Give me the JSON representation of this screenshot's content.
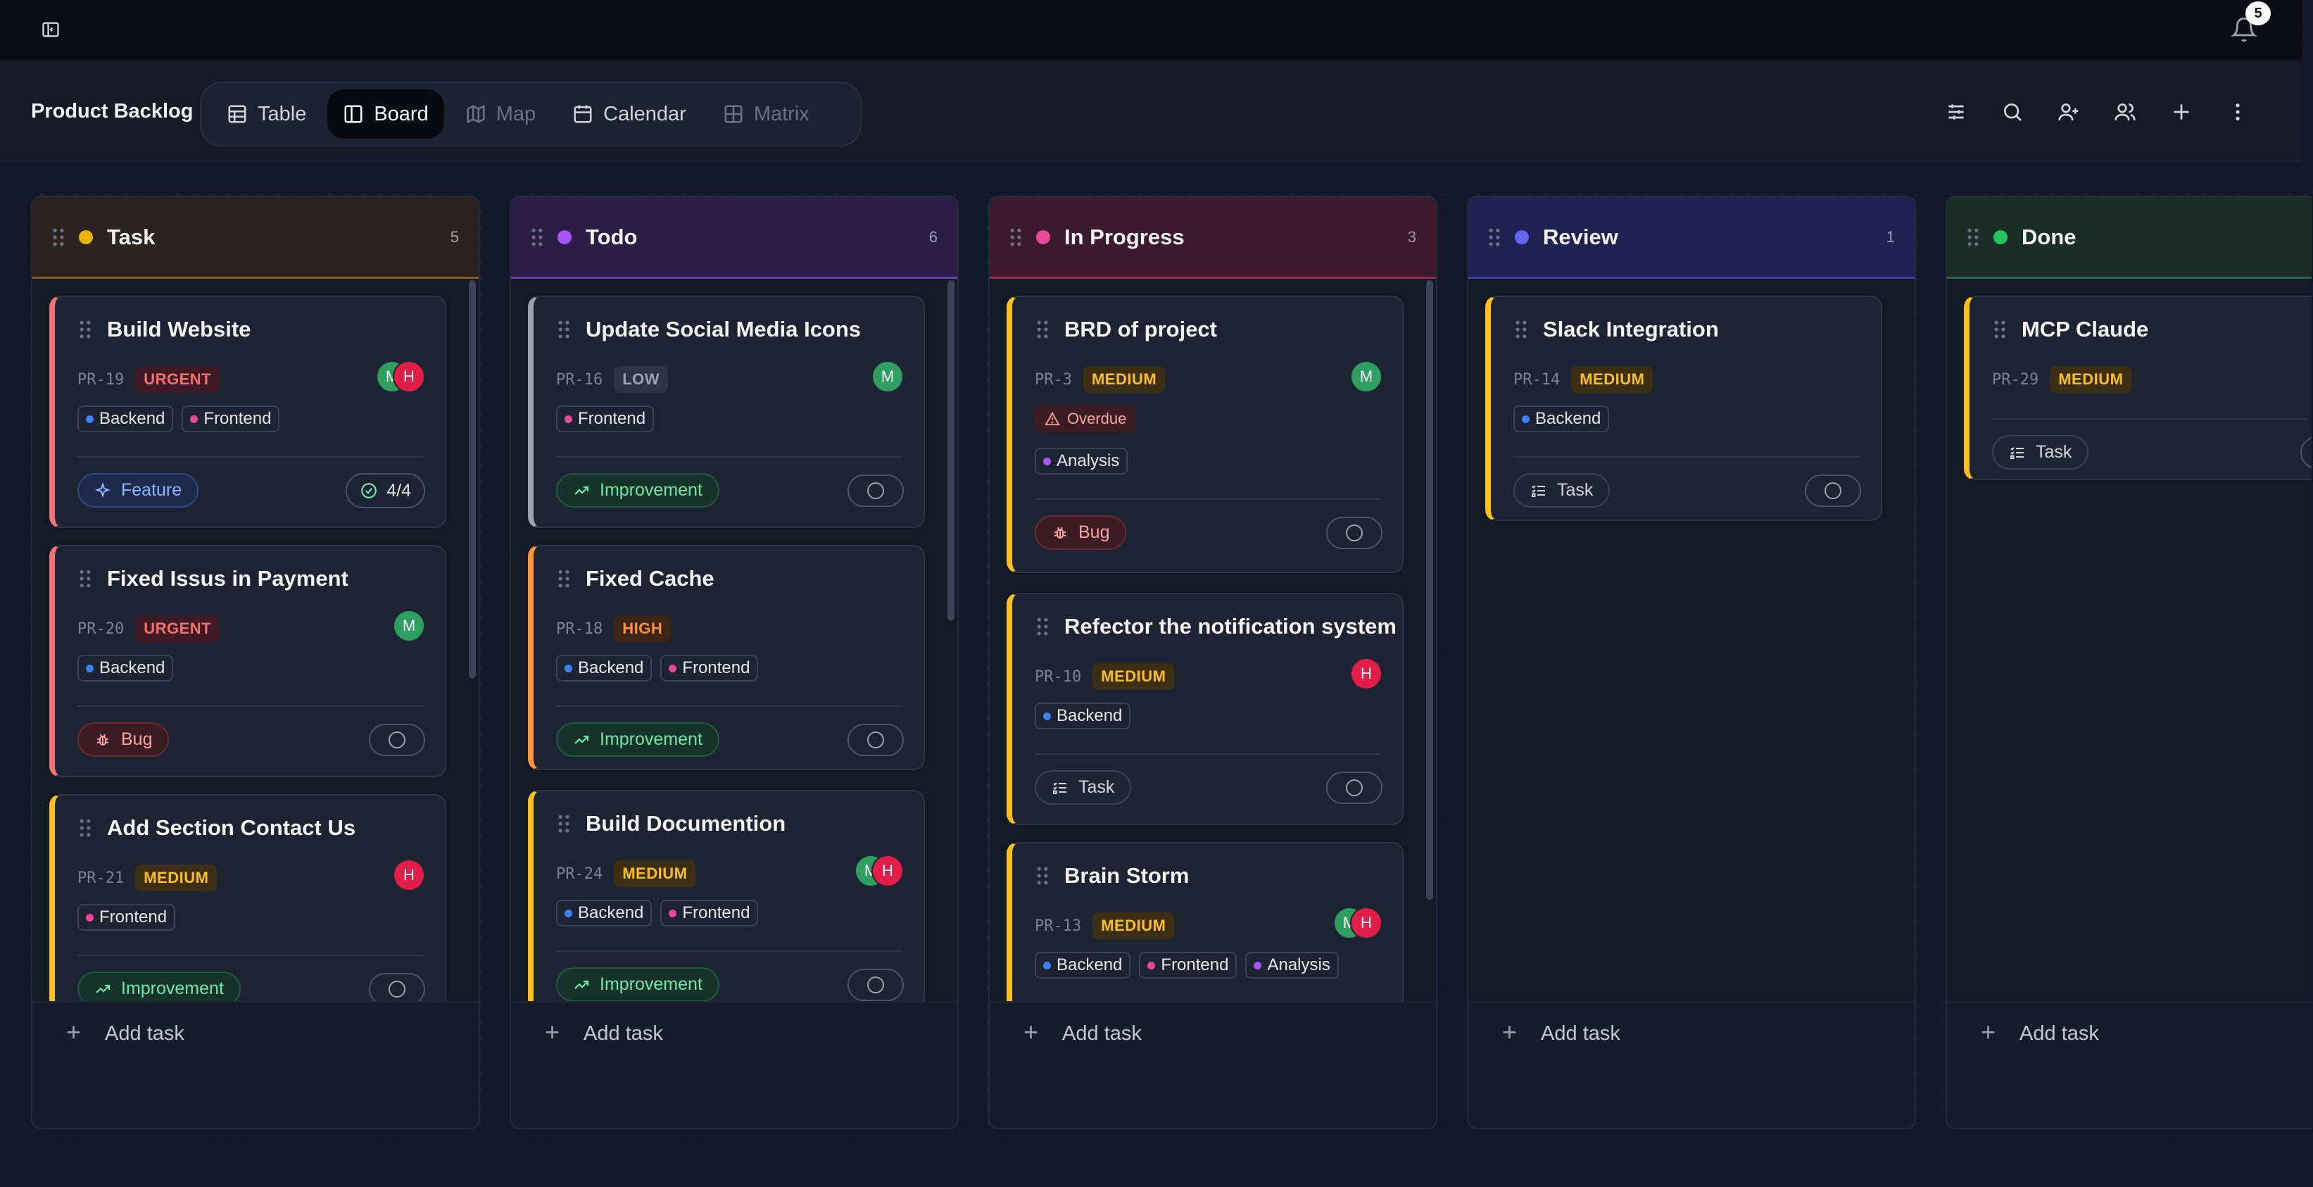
{
  "topbar": {
    "notifications_count": "5"
  },
  "header": {
    "title": "Product Backlog",
    "tabs": [
      {
        "label": "Table",
        "icon": "table-icon"
      },
      {
        "label": "Board",
        "icon": "board-icon"
      },
      {
        "label": "Map",
        "icon": "map-icon"
      },
      {
        "label": "Calendar",
        "icon": "calendar-icon"
      },
      {
        "label": "Matrix",
        "icon": "matrix-icon"
      }
    ],
    "active_tab": "Board",
    "toolbar_icons": [
      "filter-sliders-icon",
      "search-icon",
      "add-user-icon",
      "users-icon",
      "plus-icon",
      "more-vertical-icon"
    ]
  },
  "colors": {
    "urgent": "#f87171",
    "medium": "#fbbf24",
    "high": "#fb923c",
    "low": "#9ca3af",
    "backend_dot": "#3b82f6",
    "frontend_dot": "#ec4899",
    "analysis_dot": "#a855f7"
  },
  "add_task_label": "Add task",
  "columns": [
    {
      "title": "Task",
      "count": "5",
      "dot_color": "#eab308",
      "header_bg": "#2b2320",
      "accent": "#8a5a22",
      "cards": [
        {
          "title": "Build Website",
          "id": "PR-19",
          "priority": "URGENT",
          "tags": [
            "Backend",
            "Frontend"
          ],
          "type": "Feature",
          "progress": "4/4",
          "assignees": [
            "M",
            "H"
          ]
        },
        {
          "title": "Fixed Issus in Payment",
          "id": "PR-20",
          "priority": "URGENT",
          "tags": [
            "Backend"
          ],
          "type": "Bug",
          "assignees": [
            "M"
          ]
        },
        {
          "title": "Add Section Contact Us",
          "id": "PR-21",
          "priority": "MEDIUM",
          "tags": [
            "Frontend"
          ],
          "type": "Improvement",
          "assignees": [
            "H"
          ]
        }
      ]
    },
    {
      "title": "Todo",
      "count": "6",
      "dot_color": "#a855f7",
      "header_bg": "#2a1e45",
      "accent": "#6b3fb0",
      "cards": [
        {
          "title": "Update Social Media Icons",
          "id": "PR-16",
          "priority": "LOW",
          "tags": [
            "Frontend"
          ],
          "type": "Improvement",
          "assignees": [
            "M"
          ]
        },
        {
          "title": "Fixed Cache",
          "id": "PR-18",
          "priority": "HIGH",
          "tags": [
            "Backend",
            "Frontend"
          ],
          "type": "Improvement",
          "assignees": []
        },
        {
          "title": "Build Documention",
          "id": "PR-24",
          "priority": "MEDIUM",
          "tags": [
            "Backend",
            "Frontend"
          ],
          "type": "Improvement",
          "assignees": [
            "M",
            "H"
          ]
        }
      ]
    },
    {
      "title": "In Progress",
      "count": "3",
      "dot_color": "#ec4899",
      "header_bg": "#3a1a2b",
      "accent": "#9a2750",
      "cards": [
        {
          "title": "BRD of project",
          "id": "PR-3",
          "priority": "MEDIUM",
          "overdue": "Overdue",
          "tags": [
            "Analysis"
          ],
          "type": "Bug",
          "assignees": [
            "M"
          ]
        },
        {
          "title": "Refector the notification system",
          "id": "PR-10",
          "priority": "MEDIUM",
          "tags": [
            "Backend"
          ],
          "type": "Task",
          "assignees": [
            "H"
          ]
        },
        {
          "title": "Brain Storm",
          "id": "PR-13",
          "priority": "MEDIUM",
          "tags": [
            "Backend",
            "Frontend",
            "Analysis"
          ],
          "assignees": [
            "M",
            "H"
          ]
        }
      ]
    },
    {
      "title": "Review",
      "count": "1",
      "dot_color": "#6366f1",
      "header_bg": "#1e2250",
      "accent": "#3b3fb0",
      "cards": [
        {
          "title": "Slack Integration",
          "id": "PR-14",
          "priority": "MEDIUM",
          "tags": [
            "Backend"
          ],
          "type": "Task",
          "assignees": []
        }
      ]
    },
    {
      "title": "Done",
      "count": "",
      "dot_color": "#22c55e",
      "header_bg": "#1a2e28",
      "accent": "#1e6b45",
      "cards": [
        {
          "title": "MCP Claude",
          "id": "PR-29",
          "priority": "MEDIUM",
          "tags": [],
          "type": "Task",
          "assignees": []
        }
      ]
    }
  ]
}
